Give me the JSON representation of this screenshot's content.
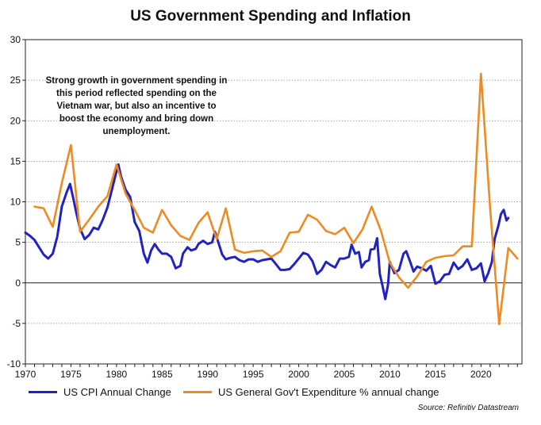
{
  "chart_data": {
    "type": "line",
    "title": "US Government Spending and Inflation",
    "xlabel": "",
    "ylabel": "",
    "xlim": [
      1970,
      2024.5
    ],
    "ylim": [
      -10,
      30
    ],
    "x_ticks": [
      "1970",
      "1975",
      "1980",
      "1985",
      "1990",
      "1995",
      "2000",
      "2005",
      "2010",
      "2015",
      "2020"
    ],
    "y_ticks": [
      "30",
      "25",
      "20",
      "15",
      "10",
      "5",
      "0",
      "-5",
      "-10"
    ],
    "grid": "horizontal dotted",
    "legend_position": "bottom",
    "annotation": "Strong growth in government spending in this period reflected spending on the Vietnam war, but also an incentive to boost the economy and bring down unemployment.",
    "source": "Source: Refinitiv Datastream",
    "series": [
      {
        "name": "US CPI Annual Change",
        "color": "#2222c0",
        "points": [
          [
            1970.0,
            6.2
          ],
          [
            1970.5,
            5.8
          ],
          [
            1971.0,
            5.3
          ],
          [
            1971.5,
            4.4
          ],
          [
            1972.0,
            3.5
          ],
          [
            1972.5,
            3.0
          ],
          [
            1973.0,
            3.6
          ],
          [
            1973.5,
            5.7
          ],
          [
            1974.0,
            9.4
          ],
          [
            1974.5,
            11.1
          ],
          [
            1974.9,
            12.2
          ],
          [
            1975.3,
            10.2
          ],
          [
            1975.6,
            8.6
          ],
          [
            1976.0,
            6.7
          ],
          [
            1976.5,
            5.4
          ],
          [
            1977.0,
            5.9
          ],
          [
            1977.5,
            6.8
          ],
          [
            1978.0,
            6.6
          ],
          [
            1978.5,
            7.8
          ],
          [
            1979.0,
            9.3
          ],
          [
            1979.5,
            11.5
          ],
          [
            1979.9,
            13.3
          ],
          [
            1980.2,
            14.6
          ],
          [
            1980.5,
            13.1
          ],
          [
            1981.0,
            11.5
          ],
          [
            1981.5,
            10.6
          ],
          [
            1982.0,
            7.5
          ],
          [
            1982.5,
            6.4
          ],
          [
            1983.0,
            3.6
          ],
          [
            1983.4,
            2.5
          ],
          [
            1983.8,
            4.0
          ],
          [
            1984.2,
            4.8
          ],
          [
            1984.6,
            4.1
          ],
          [
            1985.0,
            3.6
          ],
          [
            1985.5,
            3.6
          ],
          [
            1986.0,
            3.2
          ],
          [
            1986.5,
            1.8
          ],
          [
            1987.0,
            2.1
          ],
          [
            1987.3,
            3.6
          ],
          [
            1987.8,
            4.4
          ],
          [
            1988.2,
            4.0
          ],
          [
            1988.7,
            4.2
          ],
          [
            1989.0,
            4.8
          ],
          [
            1989.5,
            5.2
          ],
          [
            1990.0,
            4.8
          ],
          [
            1990.5,
            5.0
          ],
          [
            1990.8,
            6.3
          ],
          [
            1991.2,
            4.9
          ],
          [
            1991.6,
            3.5
          ],
          [
            1992.0,
            2.9
          ],
          [
            1992.5,
            3.1
          ],
          [
            1993.0,
            3.2
          ],
          [
            1993.5,
            2.8
          ],
          [
            1994.0,
            2.6
          ],
          [
            1994.5,
            2.9
          ],
          [
            1995.0,
            2.9
          ],
          [
            1995.5,
            2.6
          ],
          [
            1996.0,
            2.8
          ],
          [
            1996.5,
            2.9
          ],
          [
            1997.0,
            3.0
          ],
          [
            1997.5,
            2.3
          ],
          [
            1998.0,
            1.6
          ],
          [
            1998.5,
            1.6
          ],
          [
            1999.0,
            1.7
          ],
          [
            1999.5,
            2.3
          ],
          [
            2000.0,
            3.0
          ],
          [
            2000.5,
            3.7
          ],
          [
            2001.0,
            3.5
          ],
          [
            2001.5,
            2.7
          ],
          [
            2002.0,
            1.1
          ],
          [
            2002.5,
            1.6
          ],
          [
            2003.0,
            2.6
          ],
          [
            2003.5,
            2.2
          ],
          [
            2004.0,
            1.9
          ],
          [
            2004.5,
            3.0
          ],
          [
            2005.0,
            3.0
          ],
          [
            2005.5,
            3.2
          ],
          [
            2005.8,
            4.7
          ],
          [
            2006.2,
            3.6
          ],
          [
            2006.6,
            3.8
          ],
          [
            2006.9,
            1.9
          ],
          [
            2007.3,
            2.6
          ],
          [
            2007.7,
            2.8
          ],
          [
            2007.9,
            4.1
          ],
          [
            2008.3,
            4.2
          ],
          [
            2008.6,
            5.5
          ],
          [
            2008.9,
            1.1
          ],
          [
            2009.2,
            -0.4
          ],
          [
            2009.5,
            -2.0
          ],
          [
            2009.8,
            -0.2
          ],
          [
            2010.0,
            2.6
          ],
          [
            2010.5,
            1.2
          ],
          [
            2011.0,
            1.6
          ],
          [
            2011.5,
            3.6
          ],
          [
            2011.8,
            3.9
          ],
          [
            2012.2,
            2.7
          ],
          [
            2012.6,
            1.4
          ],
          [
            2013.0,
            2.0
          ],
          [
            2013.5,
            1.8
          ],
          [
            2014.0,
            1.5
          ],
          [
            2014.5,
            2.1
          ],
          [
            2015.0,
            -0.1
          ],
          [
            2015.5,
            0.2
          ],
          [
            2016.0,
            1.0
          ],
          [
            2016.5,
            1.1
          ],
          [
            2017.0,
            2.5
          ],
          [
            2017.5,
            1.7
          ],
          [
            2018.0,
            2.1
          ],
          [
            2018.5,
            2.9
          ],
          [
            2019.0,
            1.6
          ],
          [
            2019.5,
            1.8
          ],
          [
            2020.0,
            2.4
          ],
          [
            2020.4,
            0.2
          ],
          [
            2020.8,
            1.2
          ],
          [
            2021.2,
            2.6
          ],
          [
            2021.5,
            5.4
          ],
          [
            2021.9,
            7.0
          ],
          [
            2022.2,
            8.5
          ],
          [
            2022.5,
            9.0
          ],
          [
            2022.8,
            7.7
          ],
          [
            2023.0,
            8.0
          ]
        ]
      },
      {
        "name": "US General Gov't Expenditure % annual change",
        "color": "#ed8b22",
        "points": [
          [
            1971,
            9.4
          ],
          [
            1972,
            9.2
          ],
          [
            1973,
            6.9
          ],
          [
            1974,
            12.3
          ],
          [
            1975,
            17.0
          ],
          [
            1976,
            6.3
          ],
          [
            1977,
            7.8
          ],
          [
            1978,
            9.4
          ],
          [
            1979,
            10.7
          ],
          [
            1980,
            14.6
          ],
          [
            1981,
            11.0
          ],
          [
            1982,
            9.0
          ],
          [
            1983,
            6.8
          ],
          [
            1984,
            6.2
          ],
          [
            1985,
            9.0
          ],
          [
            1986,
            7.1
          ],
          [
            1987,
            5.8
          ],
          [
            1988,
            5.3
          ],
          [
            1989,
            7.4
          ],
          [
            1990,
            8.7
          ],
          [
            1991,
            5.4
          ],
          [
            1992,
            9.2
          ],
          [
            1993,
            4.1
          ],
          [
            1994,
            3.7
          ],
          [
            1995,
            3.9
          ],
          [
            1996,
            4.0
          ],
          [
            1997,
            3.2
          ],
          [
            1998,
            3.9
          ],
          [
            1999,
            6.2
          ],
          [
            2000,
            6.3
          ],
          [
            2001,
            8.4
          ],
          [
            2002,
            7.8
          ],
          [
            2003,
            6.4
          ],
          [
            2004,
            6.0
          ],
          [
            2005,
            6.8
          ],
          [
            2006,
            4.9
          ],
          [
            2007,
            6.6
          ],
          [
            2008,
            9.4
          ],
          [
            2009,
            6.5
          ],
          [
            2010,
            2.5
          ],
          [
            2011,
            0.7
          ],
          [
            2012,
            -0.6
          ],
          [
            2013,
            0.8
          ],
          [
            2014,
            2.6
          ],
          [
            2015,
            3.1
          ],
          [
            2016,
            3.3
          ],
          [
            2017,
            3.4
          ],
          [
            2018,
            4.5
          ],
          [
            2019,
            4.5
          ],
          [
            2020,
            25.8
          ],
          [
            2021,
            9.3
          ],
          [
            2022,
            -5.1
          ],
          [
            2023,
            4.3
          ],
          [
            2024,
            3.0
          ]
        ]
      }
    ]
  }
}
